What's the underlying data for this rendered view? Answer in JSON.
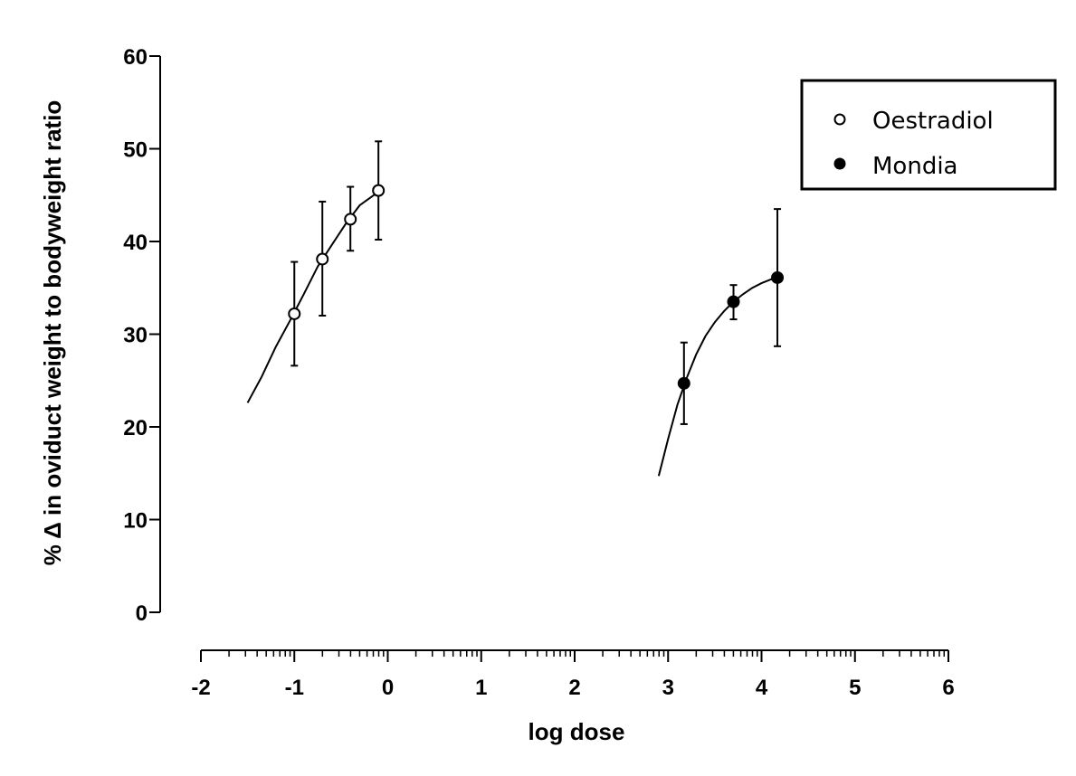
{
  "chart_data": {
    "type": "scatter",
    "xlabel": "log dose",
    "ylabel": "% Δ in oviduct weight to bodyweight ratio",
    "xlim": [
      -2,
      6
    ],
    "ylim": [
      0,
      60
    ],
    "x_ticks": [
      "-2",
      "-1",
      "0",
      "1",
      "2",
      "3",
      "4",
      "5",
      "6"
    ],
    "y_ticks": [
      "0",
      "10",
      "20",
      "30",
      "40",
      "50",
      "60"
    ],
    "grid": false,
    "legend_position": "top-right",
    "series": [
      {
        "name": "Oestradiol",
        "marker": "open-circle",
        "x": [
          -1.0,
          -0.7,
          -0.4,
          -0.1
        ],
        "y": [
          32.2,
          38.1,
          42.4,
          45.5
        ],
        "error_low": [
          26.6,
          32.0,
          39.0,
          40.2
        ],
        "error_high": [
          37.8,
          44.3,
          45.9,
          50.8
        ],
        "fit_curve": {
          "x": [
            -1.5,
            -1.35,
            -1.2,
            -1.05,
            -0.9,
            -0.75,
            -0.6,
            -0.45,
            -0.3,
            -0.15,
            -0.05
          ],
          "y": [
            22.6,
            25.4,
            28.6,
            31.4,
            34.3,
            37.3,
            39.6,
            41.9,
            43.9,
            45.0,
            45.6
          ]
        }
      },
      {
        "name": "Mondia",
        "marker": "filled-circle",
        "x": [
          3.17,
          3.7,
          4.17
        ],
        "y": [
          24.7,
          33.5,
          36.1
        ],
        "error_low": [
          20.3,
          31.6,
          28.7
        ],
        "error_high": [
          29.1,
          35.3,
          43.5
        ],
        "fit_curve": {
          "x": [
            2.9,
            3.0,
            3.1,
            3.2,
            3.3,
            3.4,
            3.5,
            3.6,
            3.7,
            3.8,
            3.9,
            4.0,
            4.1,
            4.17
          ],
          "y": [
            14.7,
            18.7,
            22.4,
            25.3,
            27.8,
            29.8,
            31.3,
            32.5,
            33.5,
            34.3,
            35.0,
            35.5,
            35.9,
            36.1
          ]
        }
      }
    ]
  }
}
